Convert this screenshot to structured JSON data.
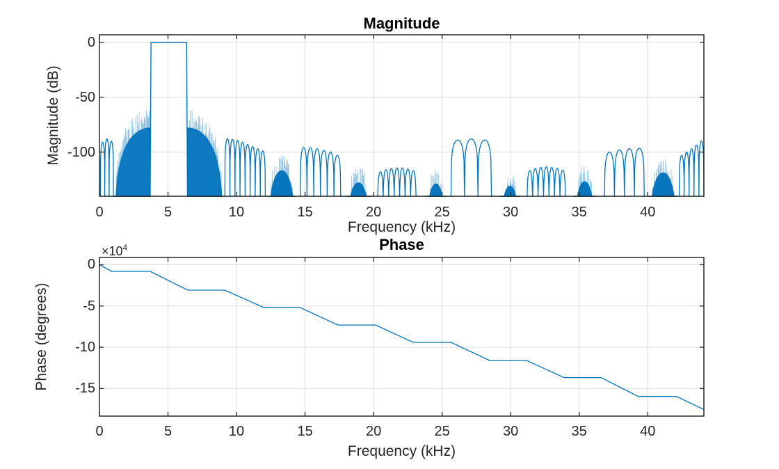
{
  "figure": {
    "background": "#ffffff",
    "accent_color": "#0072BD",
    "grid_color": "#dbdbdb",
    "axis_color": "#262626",
    "spike_alpha": 0.45
  },
  "chart_data": [
    {
      "type": "line",
      "title": "Magnitude",
      "xlabel": "Frequency (kHz)",
      "ylabel": "Magnitude (dB)",
      "xlim": [
        0,
        44.1
      ],
      "ylim": [
        -140.3,
        7
      ],
      "xticks": [
        0,
        5,
        10,
        15,
        20,
        25,
        30,
        35,
        40
      ],
      "yticks": [
        0,
        -50,
        -100
      ],
      "grid": true,
      "line_color": "#0072BD",
      "passband_khz": [
        3.7,
        6.42
      ],
      "passband_level_db": 0,
      "segments": [
        {
          "type": "lobes",
          "x0": 0.07,
          "x1": 1.02,
          "peaks": [
            -91,
            -88,
            -90
          ]
        },
        {
          "type": "skirt",
          "x0": 1.08,
          "x1": 3.68,
          "peak": -78,
          "rise": "right",
          "spike": 15
        },
        {
          "type": "passband",
          "x0": 3.7,
          "x1": 6.42,
          "top": 0
        },
        {
          "type": "skirt",
          "x0": 6.44,
          "x1": 9.05,
          "peak": -78,
          "rise": "left",
          "spike": 15
        },
        {
          "type": "lobes",
          "x0": 9.15,
          "x1": 12.1,
          "peaks": [
            -88,
            -88.5,
            -89.5,
            -91,
            -93,
            -95,
            -97,
            -99
          ]
        },
        {
          "type": "blob",
          "x0": 12.3,
          "x1": 14.3,
          "peak": -117,
          "spike": 13
        },
        {
          "type": "lobes",
          "x0": 14.65,
          "x1": 17.6,
          "peaks": [
            -96,
            -96,
            -97,
            -98.5,
            -100,
            -103
          ]
        },
        {
          "type": "blob",
          "x0": 18.0,
          "x1": 19.8,
          "peak": -128,
          "spike": 14
        },
        {
          "type": "lobes",
          "x0": 20.3,
          "x1": 23.1,
          "peaks": [
            -118,
            -116,
            -115,
            -114.5,
            -114.5,
            -115.5,
            -117
          ]
        },
        {
          "type": "blob",
          "x0": 23.8,
          "x1": 25.3,
          "peak": -129,
          "spike": 12
        },
        {
          "type": "lobes",
          "x0": 25.65,
          "x1": 28.6,
          "peaks": [
            -89,
            -88,
            -89
          ]
        },
        {
          "type": "blob",
          "x0": 29.2,
          "x1": 30.7,
          "peak": -131,
          "spike": 11
        },
        {
          "type": "lobes",
          "x0": 31.2,
          "x1": 34.0,
          "peaks": [
            -117,
            -115,
            -114,
            -113.5,
            -114,
            -115,
            -116.5
          ]
        },
        {
          "type": "blob",
          "x0": 34.6,
          "x1": 36.2,
          "peak": -127,
          "spike": 13
        },
        {
          "type": "lobes",
          "x0": 36.85,
          "x1": 39.75,
          "peaks": [
            -100,
            -98,
            -97,
            -96.5
          ]
        },
        {
          "type": "blob",
          "x0": 40.1,
          "x1": 42.15,
          "peak": -119,
          "spike": 12
        },
        {
          "type": "lobes",
          "x0": 42.3,
          "x1": 44.1,
          "peaks": [
            -103,
            -100,
            -97,
            -93.5,
            -90
          ]
        }
      ]
    },
    {
      "type": "line",
      "title": "Phase",
      "xlabel": "Frequency (kHz)",
      "ylabel": "Phase (degrees)",
      "y_multiplier": {
        "base": "×10",
        "exp": "4"
      },
      "xlim": [
        0,
        44.1
      ],
      "ylim_e4": [
        -18.34,
        0.885
      ],
      "xticks": [
        0,
        5,
        10,
        15,
        20,
        25,
        30,
        35,
        40
      ],
      "yticks": [
        0,
        -5,
        -10,
        -15
      ],
      "grid": true,
      "line_color": "#0072BD",
      "points": [
        [
          0,
          0
        ],
        [
          0.9,
          -0.8
        ],
        [
          3.7,
          -0.8
        ],
        [
          6.45,
          -3.08
        ],
        [
          9.15,
          -3.08
        ],
        [
          11.95,
          -5.15
        ],
        [
          14.6,
          -5.15
        ],
        [
          17.4,
          -7.3
        ],
        [
          20.15,
          -7.3
        ],
        [
          22.9,
          -9.4
        ],
        [
          25.65,
          -9.4
        ],
        [
          28.5,
          -11.63
        ],
        [
          31.2,
          -11.63
        ],
        [
          33.9,
          -13.67
        ],
        [
          36.6,
          -13.67
        ],
        [
          39.3,
          -15.95
        ],
        [
          42.1,
          -15.95
        ],
        [
          44.1,
          -17.55
        ]
      ]
    }
  ]
}
